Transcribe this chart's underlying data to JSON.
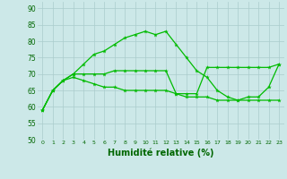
{
  "xlabel": "Humidité relative (%)",
  "background_color": "#cce8e8",
  "grid_color": "#aacccc",
  "line_color": "#00bb00",
  "xlim": [
    -0.5,
    23.5
  ],
  "ylim": [
    50,
    92
  ],
  "yticks": [
    50,
    55,
    60,
    65,
    70,
    75,
    80,
    85,
    90
  ],
  "xticks": [
    0,
    1,
    2,
    3,
    4,
    5,
    6,
    7,
    8,
    9,
    10,
    11,
    12,
    13,
    14,
    15,
    16,
    17,
    18,
    19,
    20,
    21,
    22,
    23
  ],
  "series1": [
    59,
    65,
    68,
    70,
    70,
    70,
    70,
    71,
    71,
    71,
    71,
    71,
    71,
    64,
    64,
    64,
    72,
    72,
    72,
    72,
    72,
    72,
    72,
    73
  ],
  "series2": [
    59,
    65,
    68,
    70,
    73,
    76,
    77,
    79,
    81,
    82,
    83,
    82,
    83,
    79,
    75,
    71,
    69,
    65,
    63,
    62,
    63,
    63,
    66,
    73
  ],
  "series3": [
    59,
    65,
    68,
    69,
    68,
    67,
    66,
    66,
    65,
    65,
    65,
    65,
    65,
    64,
    63,
    63,
    63,
    62,
    62,
    62,
    62,
    62,
    62,
    62
  ]
}
